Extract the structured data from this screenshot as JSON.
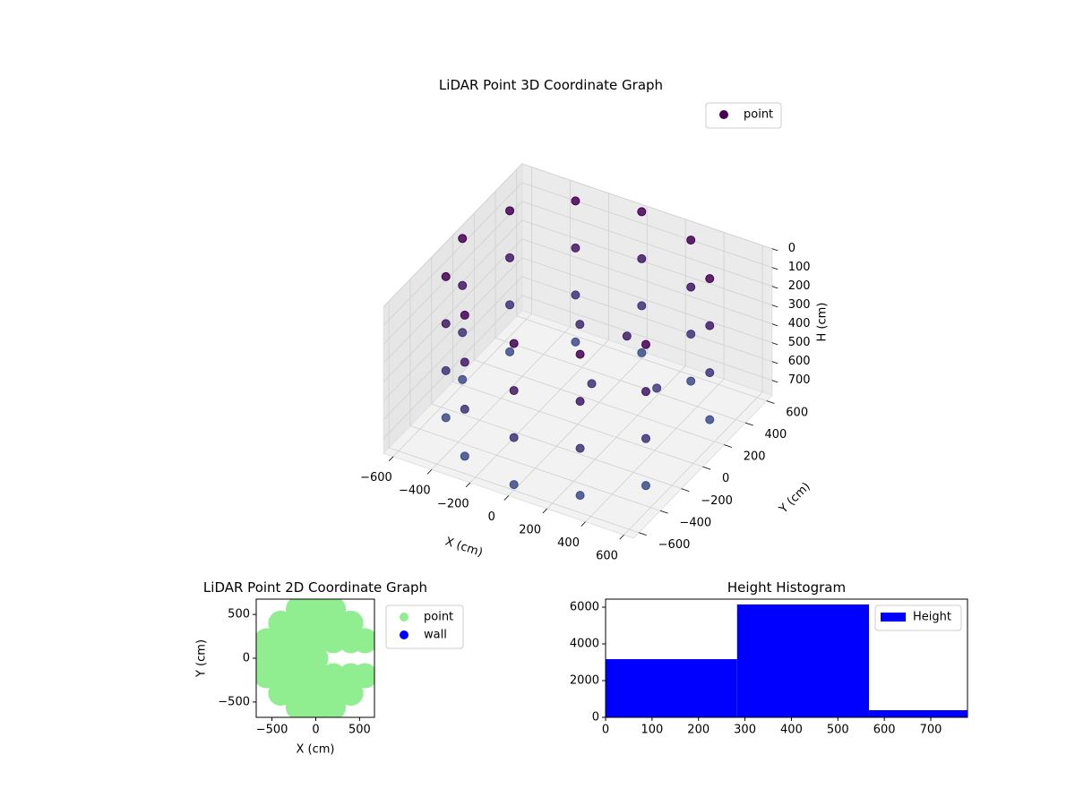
{
  "chart_data": [
    {
      "type": "scatter3d",
      "title": "LiDAR Point 3D Coordinate Graph",
      "xlabel": "X (cm)",
      "ylabel": "Y (cm)",
      "zlabel": "H (cm)",
      "series": [
        {
          "name": "point",
          "color": "#440154",
          "x": [
            520,
            300,
            0,
            -300,
            -520,
            -600,
            -520,
            -300,
            0,
            300,
            520,
            520,
            300,
            0,
            -300,
            -520,
            -600,
            -520,
            -300,
            0,
            300,
            520,
            520,
            300,
            0,
            -300,
            -520,
            -600,
            -520,
            -300,
            0,
            300,
            520,
            520,
            300,
            0,
            -300,
            -520,
            -600,
            -520,
            -300,
            0,
            300,
            520,
            200,
            100,
            -100,
            300
          ],
          "y": [
            300,
            520,
            600,
            520,
            300,
            0,
            -300,
            -520,
            -600,
            -520,
            -300,
            300,
            520,
            600,
            520,
            300,
            0,
            -300,
            -520,
            -600,
            -520,
            -300,
            300,
            520,
            600,
            520,
            300,
            0,
            -300,
            -520,
            -600,
            -520,
            -300,
            300,
            520,
            600,
            520,
            300,
            0,
            -300,
            -520,
            -600,
            -520,
            -300,
            100,
            -50,
            200,
            200
          ],
          "z": [
            0,
            0,
            0,
            0,
            0,
            0,
            0,
            0,
            0,
            0,
            0,
            250,
            250,
            250,
            250,
            250,
            250,
            250,
            250,
            250,
            250,
            250,
            500,
            500,
            500,
            500,
            500,
            500,
            500,
            500,
            500,
            500,
            500,
            750,
            750,
            750,
            750,
            750,
            750,
            750,
            750,
            750,
            750,
            750,
            300,
            500,
            400,
            600
          ]
        }
      ],
      "colormap": [
        "#440154",
        "#3e4f8a"
      ],
      "xlim": [
        -650,
        650
      ],
      "ylim": [
        -650,
        650
      ],
      "zlim": [
        0,
        780
      ],
      "zinvert": true,
      "xticks": [
        {
          "value": -600,
          "label": "−600"
        },
        {
          "value": -400,
          "label": "−400"
        },
        {
          "value": -200,
          "label": "−200"
        },
        0,
        200,
        400,
        600
      ],
      "yticks": [
        {
          "value": -600,
          "label": "−600"
        },
        {
          "value": -400,
          "label": "−400"
        },
        {
          "value": -200,
          "label": "−200"
        },
        0,
        200,
        400,
        600
      ],
      "zticks": [
        0,
        100,
        200,
        300,
        400,
        500,
        600,
        700
      ],
      "grid": true,
      "legend": "upper right"
    },
    {
      "type": "scatter",
      "title": "LiDAR Point 2D Coordinate Graph",
      "xlabel": "X (cm)",
      "ylabel": "Y (cm)",
      "series": [
        {
          "name": "point",
          "color": "#90ee90",
          "x": [
            0,
            -400,
            -200,
            0,
            200,
            400,
            -400,
            -200,
            0,
            200,
            400,
            -600,
            -400,
            -200,
            0,
            -400,
            -200,
            0,
            200,
            400,
            -400,
            -200,
            0,
            200,
            400,
            0,
            -560,
            -560,
            560,
            560,
            200,
            -200,
            200,
            -200
          ],
          "y": [
            -600,
            -400,
            -400,
            -400,
            -400,
            -400,
            -200,
            -200,
            -200,
            -200,
            -200,
            0,
            0,
            0,
            0,
            200,
            200,
            200,
            200,
            200,
            400,
            400,
            400,
            400,
            400,
            600,
            200,
            -200,
            200,
            -200,
            560,
            560,
            -560,
            -560
          ]
        },
        {
          "name": "wall",
          "color": "#0000ff",
          "x": [],
          "y": []
        }
      ],
      "xlim": [
        -680,
        670
      ],
      "ylim": [
        -675,
        675
      ],
      "xticks": [
        {
          "value": -500,
          "label": "−500"
        },
        0,
        500
      ],
      "yticks": [
        {
          "value": -500,
          "label": "−500"
        },
        0,
        500
      ],
      "legend": "outside upper right"
    },
    {
      "type": "histogram",
      "title": "Height Histogram",
      "bins": [
        0,
        283,
        567,
        779
      ],
      "series": [
        {
          "name": "Height",
          "color": "#0000ff",
          "values": [
            3170,
            6150,
            390
          ]
        }
      ],
      "xlim": [
        0,
        779
      ],
      "ylim": [
        0,
        6440
      ],
      "xticks": [
        0,
        100,
        200,
        300,
        400,
        500,
        600,
        700
      ],
      "yticks": [
        0,
        2000,
        4000,
        6000
      ],
      "legend": "upper right"
    }
  ]
}
